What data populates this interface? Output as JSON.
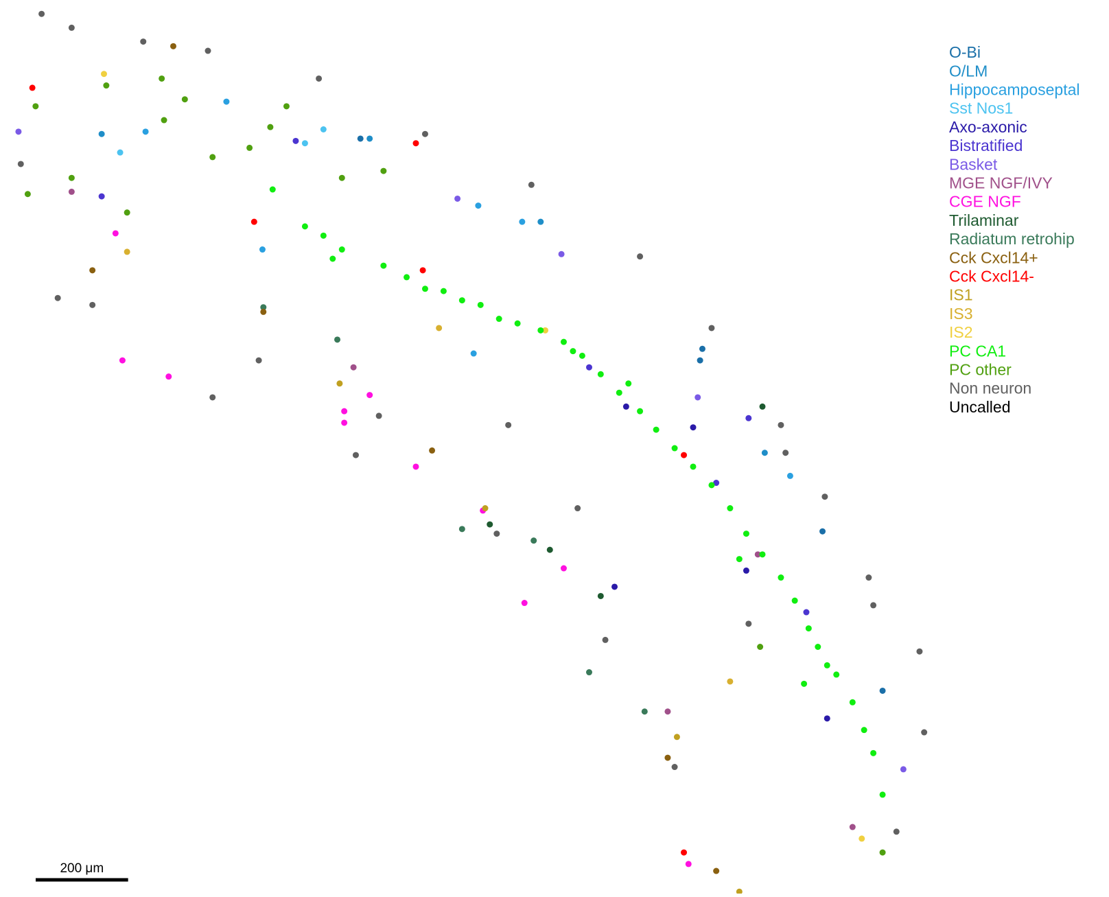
{
  "chart_data": {
    "type": "scatter",
    "xlim": [
      0,
      2400
    ],
    "ylim": [
      1934,
      0
    ],
    "scale_bar": {
      "length": 200,
      "label": "200 μm"
    },
    "series": [
      {
        "name": "O-Bi",
        "color": "#1a6fa8",
        "x": [
          1515,
          1780,
          1910,
          1520,
          780
        ],
        "y": [
          780,
          1150,
          1495,
          755,
          300
        ]
      },
      {
        "name": "O/LM",
        "color": "#1f8ec8",
        "x": [
          800,
          1655,
          1170,
          220
        ],
        "y": [
          300,
          980,
          480,
          290
        ]
      },
      {
        "name": "Hippocamposeptal",
        "color": "#2aa0e0",
        "x": [
          568,
          1035,
          1130,
          490,
          315,
          1710,
          1025
        ],
        "y": [
          540,
          445,
          480,
          220,
          285,
          1030,
          765
        ]
      },
      {
        "name": "Sst Nos1",
        "color": "#4cc3f0",
        "x": [
          700,
          660,
          260
        ],
        "y": [
          280,
          310,
          330
        ]
      },
      {
        "name": "Axo-axonic",
        "color": "#2a1aa8",
        "x": [
          1355,
          1330,
          1615,
          1500,
          1790
        ],
        "y": [
          880,
          1270,
          1235,
          925,
          1555
        ]
      },
      {
        "name": "Bistratified",
        "color": "#4b35d0",
        "x": [
          1275,
          1550,
          1745,
          1620,
          640,
          220
        ],
        "y": [
          795,
          1045,
          1325,
          905,
          305,
          425
        ]
      },
      {
        "name": "Basket",
        "color": "#7a5ae6",
        "x": [
          1215,
          1510,
          1955,
          990,
          40
        ],
        "y": [
          550,
          860,
          1665,
          430,
          285
        ]
      },
      {
        "name": "MGE NGF/IVY",
        "color": "#a0508a",
        "x": [
          765,
          1445,
          1845,
          155,
          1640
        ],
        "y": [
          795,
          1540,
          1790,
          415,
          1200
        ]
      },
      {
        "name": "CGE NGF",
        "color": "#ff10e0",
        "x": [
          745,
          745,
          250,
          800,
          265,
          900,
          1135,
          1220,
          1045,
          365,
          1490
        ],
        "y": [
          915,
          890,
          505,
          855,
          780,
          1010,
          1305,
          1230,
          1105,
          815,
          1870
        ]
      },
      {
        "name": "Trilaminar",
        "color": "#1e5a30",
        "x": [
          1190,
          1300,
          1650,
          1060
        ],
        "y": [
          1190,
          1290,
          880,
          1135
        ]
      },
      {
        "name": "Radiatum retrohip",
        "color": "#3a7a5a",
        "x": [
          1395,
          1275,
          1000,
          1155,
          570,
          730
        ],
        "y": [
          1540,
          1455,
          1145,
          1170,
          665,
          735
        ]
      },
      {
        "name": "Cck Cxcl14+",
        "color": "#8a6010",
        "x": [
          200,
          570,
          935,
          1445,
          1550,
          375
        ],
        "y": [
          585,
          675,
          975,
          1640,
          1885,
          100
        ]
      },
      {
        "name": "Cck Cxcl14-",
        "color": "#ff0000",
        "x": [
          550,
          915,
          1480,
          1480,
          900,
          70
        ],
        "y": [
          480,
          585,
          985,
          1845,
          310,
          190
        ]
      },
      {
        "name": "IS1",
        "color": "#c0a020",
        "x": [
          735,
          1050,
          1465,
          1600
        ],
        "y": [
          830,
          1100,
          1595,
          1930
        ]
      },
      {
        "name": "IS3",
        "color": "#d8b030",
        "x": [
          275,
          950,
          1580
        ],
        "y": [
          545,
          710,
          1475
        ]
      },
      {
        "name": "IS2",
        "color": "#f0d040",
        "x": [
          225,
          1180,
          1865
        ],
        "y": [
          160,
          715,
          1815
        ]
      },
      {
        "name": "PC CA1",
        "color": "#10ee10",
        "x": [
          660,
          700,
          740,
          830,
          880,
          920,
          960,
          1000,
          1040,
          1080,
          1120,
          1170,
          1220,
          1260,
          1300,
          1340,
          1385,
          1420,
          1460,
          1500,
          1540,
          1580,
          1615,
          1650,
          1690,
          1720,
          1750,
          1770,
          1790,
          1810,
          1845,
          1870,
          1890,
          1910,
          1740,
          1600,
          1360,
          1240,
          590,
          720
        ],
        "y": [
          490,
          510,
          540,
          575,
          600,
          625,
          630,
          650,
          660,
          690,
          700,
          715,
          740,
          770,
          810,
          850,
          890,
          930,
          970,
          1010,
          1050,
          1100,
          1155,
          1200,
          1250,
          1300,
          1360,
          1400,
          1440,
          1460,
          1520,
          1580,
          1630,
          1720,
          1480,
          1210,
          830,
          760,
          410,
          560
        ]
      },
      {
        "name": "PC other",
        "color": "#50a010",
        "x": [
          77,
          230,
          355,
          460,
          585,
          155,
          275,
          400,
          740,
          830,
          1645,
          1910,
          540,
          620,
          60,
          350
        ],
        "y": [
          230,
          185,
          260,
          340,
          275,
          385,
          460,
          215,
          385,
          370,
          1400,
          1845,
          320,
          230,
          420,
          170
        ]
      },
      {
        "name": "Non neuron",
        "color": "#606060",
        "x": [
          90,
          155,
          310,
          450,
          690,
          920,
          1150,
          1385,
          1540,
          1690,
          1785,
          1890,
          2000,
          125,
          460,
          770,
          1075,
          1310,
          1460,
          45,
          200,
          560,
          820,
          1250,
          1620,
          1940,
          1990,
          1880,
          1700,
          1100
        ],
        "y": [
          30,
          60,
          90,
          110,
          170,
          290,
          400,
          555,
          710,
          920,
          1075,
          1310,
          1585,
          645,
          860,
          985,
          1155,
          1385,
          1660,
          355,
          660,
          780,
          900,
          1100,
          1350,
          1800,
          1410,
          1250,
          980,
          920
        ]
      },
      {
        "name": "Uncalled",
        "color": "#000000",
        "x": [],
        "y": []
      }
    ]
  }
}
